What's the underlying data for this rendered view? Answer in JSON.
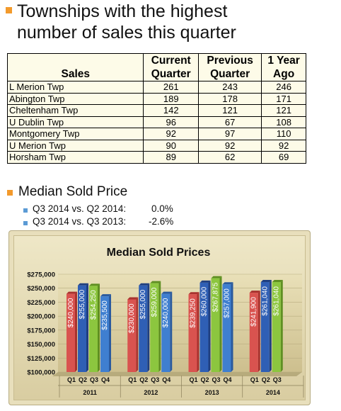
{
  "title_line1": "Townships with the highest",
  "title_line2": "number of sales this quarter",
  "table": {
    "header": {
      "col0": "Sales",
      "col1a": "Current",
      "col1b": "Quarter",
      "col2a": "Previous",
      "col2b": "Quarter",
      "col3a": "1 Year",
      "col3b": "Ago"
    },
    "rows": [
      {
        "name": "L Merion Twp",
        "current": "261",
        "previous": "243",
        "year_ago": "246"
      },
      {
        "name": "Abington Twp",
        "current": "189",
        "previous": "178",
        "year_ago": "171"
      },
      {
        "name": "Cheltenham Twp",
        "current": "142",
        "previous": "121",
        "year_ago": "121"
      },
      {
        "name": "U Dublin Twp",
        "current": "96",
        "previous": "67",
        "year_ago": "108"
      },
      {
        "name": "Montgomery Twp",
        "current": "92",
        "previous": "97",
        "year_ago": "110"
      },
      {
        "name": "U Merion Twp",
        "current": "90",
        "previous": "92",
        "year_ago": "92"
      },
      {
        "name": "Horsham Twp",
        "current": "89",
        "previous": "62",
        "year_ago": "69"
      }
    ]
  },
  "median": {
    "heading": "Median Sold Price",
    "items": [
      {
        "label": "Q3 2014 vs. Q2 2014:",
        "value": "0.0%"
      },
      {
        "label": "Q3 2014 vs. Q3 2013:",
        "value": "-2.6%"
      }
    ]
  },
  "colors": {
    "bullet": "#f39a2c",
    "q1": "#d9534f",
    "q2": "#2f5fb5",
    "q3": "#8cc63f",
    "q4": "#3f7fd0"
  },
  "chart_data": {
    "type": "bar",
    "title": "Median Sold Prices",
    "ylim": [
      100000,
      275000
    ],
    "y_ticks": [
      "$100,000",
      "$125,000",
      "$150,000",
      "$175,000",
      "$200,000",
      "$225,000",
      "$250,000",
      "$275,000"
    ],
    "groups": [
      {
        "year": "2011",
        "bars": [
          {
            "q": "Q1",
            "value": 240000,
            "label": "$240,000"
          },
          {
            "q": "Q2",
            "value": 255000,
            "label": "$255,000"
          },
          {
            "q": "Q3",
            "value": 254250,
            "label": "$254,250"
          },
          {
            "q": "Q4",
            "value": 235500,
            "label": "$235,500"
          }
        ]
      },
      {
        "year": "2012",
        "bars": [
          {
            "q": "Q1",
            "value": 230000,
            "label": "$230,000"
          },
          {
            "q": "Q2",
            "value": 255000,
            "label": "$255,000"
          },
          {
            "q": "Q3",
            "value": 259000,
            "label": "$259,000"
          },
          {
            "q": "Q4",
            "value": 240000,
            "label": "$240,000"
          }
        ]
      },
      {
        "year": "2013",
        "bars": [
          {
            "q": "Q1",
            "value": 239250,
            "label": "$239,250"
          },
          {
            "q": "Q2",
            "value": 260000,
            "label": "$260,000"
          },
          {
            "q": "Q3",
            "value": 267875,
            "label": "$267,875"
          },
          {
            "q": "Q4",
            "value": 257000,
            "label": "$257,000"
          }
        ]
      },
      {
        "year": "2014",
        "bars": [
          {
            "q": "Q1",
            "value": 241900,
            "label": "$241,900"
          },
          {
            "q": "Q2",
            "value": 261040,
            "label": "$261,040"
          },
          {
            "q": "Q3",
            "value": 261040,
            "label": "$261,040"
          }
        ]
      }
    ]
  }
}
